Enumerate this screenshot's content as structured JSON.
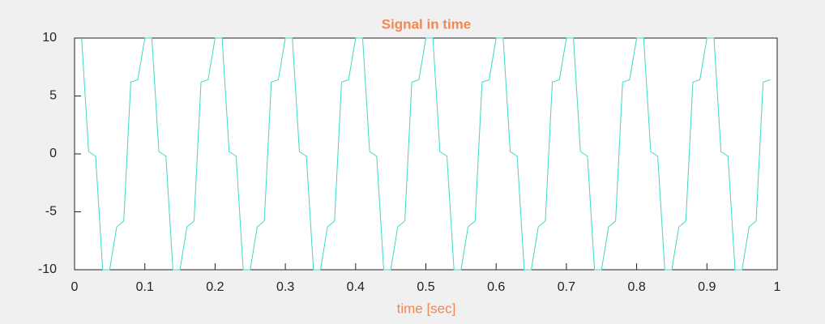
{
  "chart_data": {
    "type": "line",
    "title": "Signal in time",
    "x_label": "time [sec]",
    "x": [
      0.01,
      0.02,
      0.03,
      0.04,
      0.05,
      0.06,
      0.07,
      0.08,
      0.09,
      0.1,
      0.11,
      0.12,
      0.13,
      0.14,
      0.15,
      0.16,
      0.17,
      0.18,
      0.19,
      0.2,
      0.21,
      0.22,
      0.23,
      0.24,
      0.25,
      0.26,
      0.27,
      0.28,
      0.29,
      0.3,
      0.31,
      0.32,
      0.33,
      0.34,
      0.35,
      0.36,
      0.37,
      0.38,
      0.39,
      0.4,
      0.41,
      0.42,
      0.43,
      0.44,
      0.45,
      0.46,
      0.47,
      0.48,
      0.49,
      0.5,
      0.51,
      0.52,
      0.53,
      0.54,
      0.55,
      0.56,
      0.57,
      0.58,
      0.59,
      0.6,
      0.61,
      0.62,
      0.63,
      0.64,
      0.65,
      0.66,
      0.67,
      0.68,
      0.69,
      0.7,
      0.71,
      0.72,
      0.73,
      0.74,
      0.75,
      0.76,
      0.77,
      0.78,
      0.79,
      0.8,
      0.81,
      0.82,
      0.83,
      0.84,
      0.85,
      0.86,
      0.87,
      0.88,
      0.89,
      0.9,
      0.91,
      0.92,
      0.93,
      0.94,
      0.95,
      0.96,
      0.97,
      0.98,
      0.99
    ],
    "values": [
      10,
      0.2,
      -0.2,
      -10,
      -10,
      -6.3,
      -5.8,
      6.2,
      6.4,
      10,
      10,
      0.2,
      -0.2,
      -10,
      -10,
      -6.3,
      -5.8,
      6.2,
      6.4,
      10,
      10,
      0.2,
      -0.2,
      -10,
      -10,
      -6.3,
      -5.8,
      6.2,
      6.4,
      10,
      10,
      0.2,
      -0.2,
      -10,
      -10,
      -6.3,
      -5.8,
      6.2,
      6.4,
      10,
      10,
      0.2,
      -0.2,
      -10,
      -10,
      -6.3,
      -5.8,
      6.2,
      6.4,
      10,
      10,
      0.2,
      -0.2,
      -10,
      -10,
      -6.3,
      -5.8,
      6.2,
      6.4,
      10,
      10,
      0.2,
      -0.2,
      -10,
      -10,
      -6.3,
      -5.8,
      6.2,
      6.4,
      10,
      10,
      0.2,
      -0.2,
      -10,
      -10,
      -6.3,
      -5.8,
      6.2,
      6.4,
      10,
      10,
      0.2,
      -0.2,
      -10,
      -10,
      -6.3,
      -5.8,
      6.2,
      6.4,
      10,
      10,
      0.2,
      -0.2,
      -10,
      -10,
      -6.3,
      -5.8,
      6.2,
      6.4
    ],
    "color": "#40d8c4",
    "xlim": [
      0,
      1
    ],
    "xticks": [
      0,
      0.1,
      0.2,
      0.3,
      0.4,
      0.5,
      0.6,
      0.7,
      0.8,
      0.9,
      1
    ],
    "ylim": [
      -10,
      10
    ],
    "yticks": [
      -10,
      -5,
      0,
      5,
      10
    ]
  }
}
